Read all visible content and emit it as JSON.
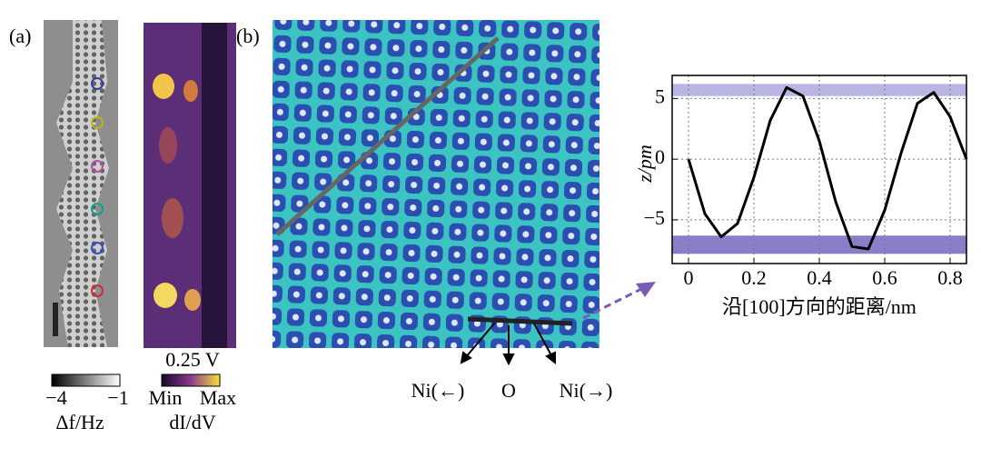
{
  "labels": {
    "panel_a": "(a)",
    "panel_b": "(b)",
    "cb1_min": "−4",
    "cb1_max": "−1",
    "cb1_label": "Δf/Hz",
    "bias": "0.25 V",
    "cb2_min": "Min",
    "cb2_max": "Max",
    "cb2_label": "dI/dV",
    "arrow_left": "Ni(←)",
    "arrow_mid": "O",
    "arrow_right": "Ni(→)"
  },
  "chart_data": {
    "type": "line",
    "xlabel": "沿[100]方向的距离/nm",
    "ylabel": "z/pm",
    "x": [
      0,
      0.05,
      0.1,
      0.15,
      0.2,
      0.25,
      0.3,
      0.35,
      0.4,
      0.45,
      0.5,
      0.55,
      0.6,
      0.65,
      0.7,
      0.75,
      0.8,
      0.85
    ],
    "series": [
      {
        "color": "#000000",
        "values": [
          0,
          -4.5,
          -6.4,
          -5.3,
          -1.5,
          3.2,
          5.9,
          5.2,
          1.5,
          -3.5,
          -7.2,
          -7.4,
          -4.2,
          0.5,
          4.6,
          5.5,
          3.5,
          0
        ]
      }
    ],
    "bands": [
      {
        "from": 5.2,
        "to": 6.2,
        "color": "#b9b6e6"
      },
      {
        "from": -6.3,
        "to": -7.8,
        "color": "#8a7ec8"
      }
    ],
    "xlim": [
      -0.05,
      0.85
    ],
    "ylim": [
      -8.6,
      6.9
    ],
    "xticks": [
      0,
      0.2,
      0.4,
      0.6,
      0.8
    ],
    "yticks": [
      {
        "value": -5,
        "label": "−5"
      },
      0,
      5
    ],
    "grid": true
  }
}
